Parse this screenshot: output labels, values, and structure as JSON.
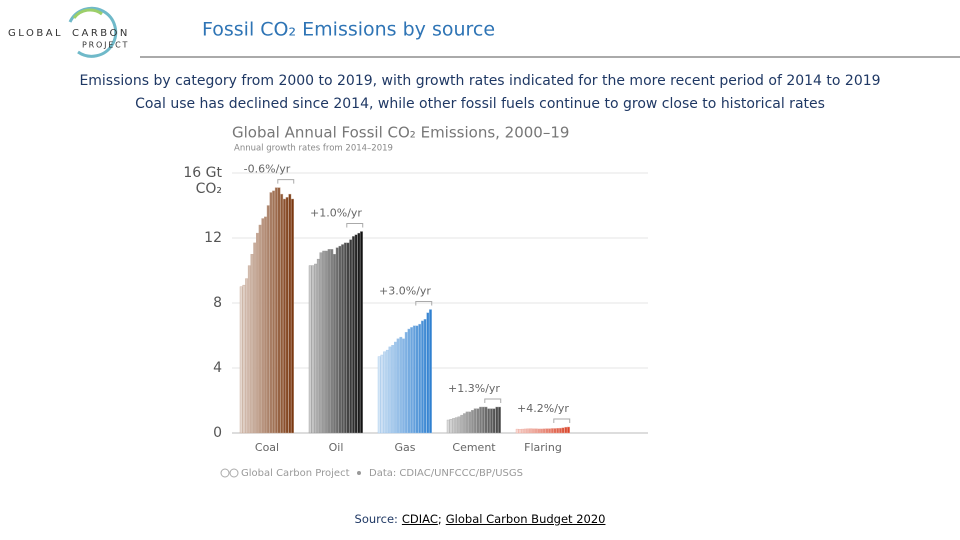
{
  "logo": {
    "line1": "GLOBAL",
    "line2": "CARBON",
    "line3": "PROJECT"
  },
  "header": {
    "title": "Fossil CO₂ Emissions by source"
  },
  "subtitle_lines": [
    "Emissions by category from 2000 to 2019, with growth rates indicated for the more recent period of 2014 to 2019",
    "Coal use has declined since 2014, while other fossil fuels continue to grow close to historical rates"
  ],
  "chart_data": {
    "type": "bar",
    "title": "Global Annual Fossil CO₂ Emissions, 2000–19",
    "subtitle": "Annual growth rates from 2014–2019",
    "categories": [
      "Coal",
      "Oil",
      "Gas",
      "Cement",
      "Flaring"
    ],
    "groups": [
      {
        "color": "#7a3810",
        "annotation": "-0.6%/yr",
        "values": [
          9.0,
          9.1,
          9.5,
          10.3,
          11.0,
          11.7,
          12.3,
          12.8,
          13.2,
          13.3,
          14.0,
          14.8,
          14.9,
          15.1,
          15.1,
          14.7,
          14.4,
          14.5,
          14.7,
          14.4
        ]
      },
      {
        "color": "#111111",
        "annotation": "+1.0%/yr",
        "values": [
          10.3,
          10.3,
          10.4,
          10.7,
          11.1,
          11.2,
          11.2,
          11.3,
          11.3,
          11.0,
          11.4,
          11.5,
          11.6,
          11.7,
          11.7,
          11.9,
          12.1,
          12.2,
          12.3,
          12.4
        ]
      },
      {
        "color": "#2f80d0",
        "annotation": "+3.0%/yr",
        "values": [
          4.7,
          4.8,
          5.0,
          5.1,
          5.3,
          5.4,
          5.6,
          5.8,
          5.9,
          5.8,
          6.2,
          6.4,
          6.5,
          6.6,
          6.6,
          6.7,
          6.9,
          7.0,
          7.4,
          7.6
        ]
      },
      {
        "color": "#444444",
        "annotation": "+1.3%/yr",
        "values": [
          0.8,
          0.85,
          0.9,
          0.95,
          1.0,
          1.1,
          1.2,
          1.3,
          1.3,
          1.4,
          1.5,
          1.5,
          1.6,
          1.6,
          1.6,
          1.5,
          1.5,
          1.5,
          1.6,
          1.6
        ]
      },
      {
        "color": "#d9452a",
        "annotation": "+4.2%/yr",
        "values": [
          0.24,
          0.23,
          0.24,
          0.25,
          0.26,
          0.27,
          0.26,
          0.26,
          0.25,
          0.25,
          0.26,
          0.27,
          0.27,
          0.28,
          0.28,
          0.29,
          0.3,
          0.32,
          0.36,
          0.37
        ]
      }
    ],
    "ylim": [
      0,
      16
    ],
    "yticks": [
      0,
      4,
      8,
      12,
      {
        "value": 16,
        "label": "16 Gt"
      }
    ],
    "y_unit": "CO₂",
    "grid": true,
    "credit": "Global Carbon Project",
    "data_source": "Data: CDIAC/UNFCCC/BP/USGS"
  },
  "footer": {
    "prefix": "Source:",
    "links": [
      "CDIAC",
      "Global Carbon Budget 2020"
    ],
    "separator": ";"
  }
}
